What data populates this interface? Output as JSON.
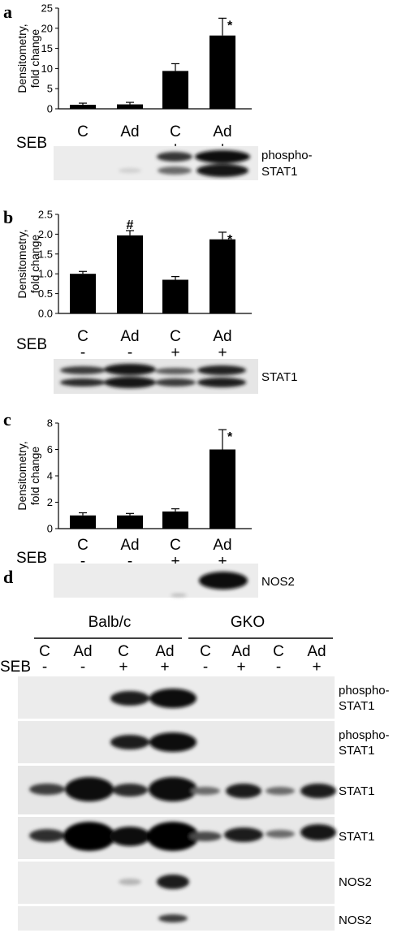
{
  "panels": {
    "a": {
      "letter": "a",
      "marker_row_label": "SEB",
      "band_label_1": "phospho-",
      "band_label_2": "STAT1"
    },
    "b": {
      "letter": "b",
      "marker_row_label": "SEB",
      "band_label": "STAT1"
    },
    "c": {
      "letter": "c",
      "marker_row_label": "SEB",
      "band_label": "NOS2"
    },
    "d": {
      "letter": "d",
      "marker_row_label": "SEB",
      "groups": [
        "Balb/c",
        "GKO"
      ],
      "lanes": [
        "C",
        "Ad",
        "C",
        "Ad",
        "C",
        "Ad",
        "C",
        "Ad"
      ],
      "seb": [
        "-",
        "-",
        "+",
        "+",
        "-",
        "+",
        "-",
        "+"
      ],
      "blot_labels": [
        [
          "phospho-",
          "STAT1"
        ],
        [
          "phospho-",
          "STAT1"
        ],
        [
          "STAT1"
        ],
        [
          "STAT1"
        ],
        [
          "NOS2"
        ],
        [
          "NOS2"
        ]
      ]
    }
  },
  "chart_data": [
    {
      "type": "bar",
      "panel": "a",
      "categories": [
        "C",
        "Ad",
        "C",
        "Ad"
      ],
      "seb": [
        "-",
        "-",
        "+",
        "+"
      ],
      "values": [
        1.0,
        1.1,
        9.4,
        18.2
      ],
      "errors": [
        0.4,
        0.5,
        1.8,
        4.3
      ],
      "significance": [
        "",
        "",
        "",
        "*"
      ],
      "ylabel": [
        "Densitometry,",
        "fold change"
      ],
      "ylim": [
        0,
        25
      ],
      "yticks": [
        0,
        5,
        10,
        15,
        20,
        25
      ],
      "color": "#000000"
    },
    {
      "type": "bar",
      "panel": "b",
      "categories": [
        "C",
        "Ad",
        "C",
        "Ad"
      ],
      "seb": [
        "-",
        "-",
        "+",
        "+"
      ],
      "values": [
        1.0,
        1.97,
        0.85,
        1.87
      ],
      "errors": [
        0.06,
        0.12,
        0.08,
        0.18
      ],
      "significance": [
        "",
        "#",
        "",
        "*"
      ],
      "ylabel": [
        "Densitometry,",
        "fold change"
      ],
      "ylim": [
        0,
        2.5
      ],
      "yticks": [
        "0.0",
        "0.5",
        "1.0",
        "1.5",
        "2.0",
        "2.5"
      ],
      "color": "#000000"
    },
    {
      "type": "bar",
      "panel": "c",
      "categories": [
        "C",
        "Ad",
        "C",
        "Ad"
      ],
      "seb": [
        "-",
        "-",
        "+",
        "+"
      ],
      "values": [
        1.0,
        1.0,
        1.3,
        6.0
      ],
      "errors": [
        0.2,
        0.15,
        0.2,
        1.5
      ],
      "significance": [
        "",
        "",
        "",
        "*"
      ],
      "ylabel": [
        "Densitometry,",
        "fold change"
      ],
      "ylim": [
        0,
        8
      ],
      "yticks": [
        0,
        2,
        4,
        6,
        8
      ],
      "color": "#000000"
    }
  ]
}
